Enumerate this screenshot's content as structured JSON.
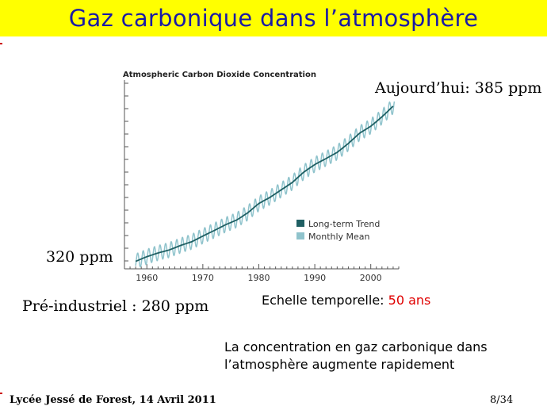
{
  "slide": {
    "title": "Gaz carbonique dans l’atmosphère",
    "today_label": "Aujourd’hui: 385 ppm",
    "start_label": "320 ppm",
    "preindustrial_label": "Pré-industriel : 280 ppm",
    "timescale_label": "Echelle temporelle:",
    "timescale_value": "50 ans",
    "conclusion_line1": "La concentration en gaz carbonique dans",
    "conclusion_line2": "l’atmosphère augmente rapidement",
    "footer_left": "Lycée Jessé de Forest, 14 Avril 2011",
    "footer_right": "8/34"
  },
  "colors": {
    "title_bar": "#ffff00",
    "title_text": "#1a1aa6",
    "trend": "#1f5f63",
    "monthly": "#8fc3cc",
    "accent_red": "#e00000"
  },
  "chart_data": {
    "type": "line",
    "title": "Atmospheric Carbon Dioxide Concentration",
    "xlabel": "",
    "ylabel": "",
    "xlim": [
      1956,
      2005
    ],
    "ylim": [
      312,
      388
    ],
    "x_ticks": [
      "1960",
      "1970",
      "1980",
      "1990",
      "2000"
    ],
    "grid": false,
    "legend_position": "bottom-right",
    "series": [
      {
        "name": "Long-term Trend",
        "x": [
          1958,
          1960,
          1962,
          1964,
          1966,
          1968,
          1970,
          1972,
          1974,
          1976,
          1978,
          1980,
          1982,
          1984,
          1986,
          1988,
          1990,
          1992,
          1994,
          1996,
          1998,
          2000,
          2002,
          2004
        ],
        "values": [
          315,
          316.9,
          318.4,
          319.6,
          321.4,
          322.9,
          325.2,
          327.4,
          329.7,
          331.6,
          334.5,
          338.3,
          340.8,
          343.8,
          346.8,
          350.9,
          354.0,
          356.4,
          358.9,
          362.5,
          366.6,
          369.4,
          373.2,
          377.5
        ]
      },
      {
        "name": "Monthly Mean",
        "x": [
          1958,
          1960,
          1962,
          1964,
          1966,
          1968,
          1970,
          1972,
          1974,
          1976,
          1978,
          1980,
          1982,
          1984,
          1986,
          1988,
          1990,
          1992,
          1994,
          1996,
          1998,
          2000,
          2002,
          2004
        ],
        "values": [
          315,
          316.9,
          318.4,
          319.6,
          321.4,
          322.9,
          325.2,
          327.4,
          329.7,
          331.6,
          334.5,
          338.3,
          340.8,
          343.8,
          346.8,
          350.9,
          354.0,
          356.4,
          358.9,
          362.5,
          366.6,
          369.4,
          373.2,
          377.5
        ],
        "seasonal_amplitude": 3.0
      }
    ]
  }
}
